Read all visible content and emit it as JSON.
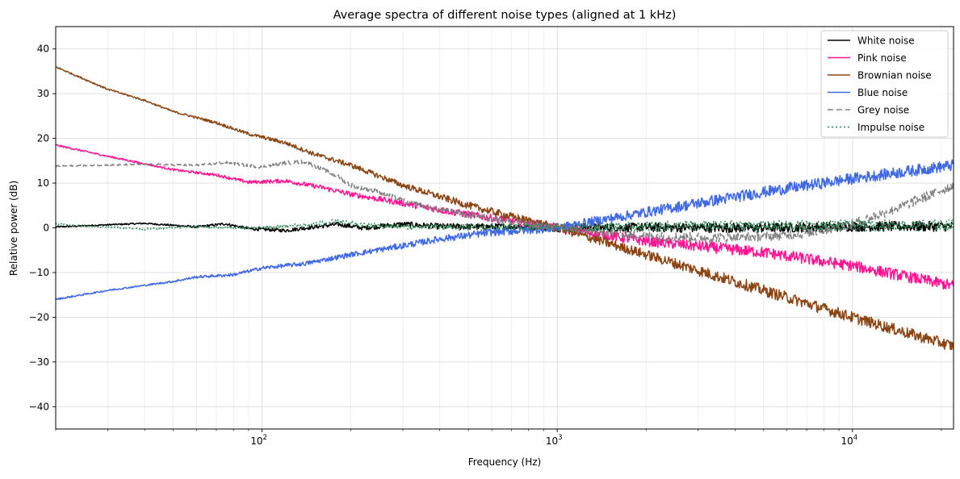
{
  "chart_data": {
    "type": "line",
    "title": "Average spectra of different noise types (aligned at 1 kHz)",
    "xlabel": "Frequency (Hz)",
    "ylabel": "Relative power (dB)",
    "xscale": "log",
    "xlim": [
      20,
      22000
    ],
    "ylim": [
      -45,
      45
    ],
    "grid": true,
    "legend_position": "top-right",
    "x_ticks": [
      {
        "value": 100,
        "base": "10",
        "exp": "2"
      },
      {
        "value": 1000,
        "base": "10",
        "exp": "3"
      },
      {
        "value": 10000,
        "base": "10",
        "exp": "4"
      }
    ],
    "y_ticks": [
      -40,
      -30,
      -20,
      -10,
      0,
      10,
      20,
      30,
      40
    ],
    "y_tick_labels": [
      "−40",
      "−30",
      "−20",
      "−10",
      "0",
      "10",
      "20",
      "30",
      "40"
    ],
    "series": [
      {
        "name": "White noise",
        "color": "#000000",
        "dash": "solid",
        "x": [
          20,
          40,
          60,
          75,
          90,
          120,
          160,
          180,
          220,
          300,
          400,
          600,
          800,
          1000,
          2000,
          5000,
          10000,
          22000
        ],
        "y": [
          0.2,
          1.0,
          0.2,
          0.9,
          -0.2,
          -0.6,
          0.4,
          0.8,
          0.0,
          0.8,
          0.3,
          0.2,
          0.3,
          0.0,
          0.1,
          0.0,
          0.3,
          0.3
        ],
        "noise": 0.8
      },
      {
        "name": "Pink noise",
        "color": "#ff1493",
        "dash": "solid",
        "x": [
          20,
          30,
          50,
          70,
          90,
          120,
          160,
          200,
          300,
          400,
          500,
          700,
          1000,
          2000,
          5000,
          10000,
          22000
        ],
        "y": [
          18.5,
          16,
          13,
          11.8,
          10.2,
          10.5,
          9,
          7.5,
          5.5,
          4,
          3,
          1.5,
          0,
          -3,
          -5.5,
          -8.5,
          -13
        ],
        "noise": 0.9
      },
      {
        "name": "Brownian noise",
        "color": "#8b4513",
        "dash": "solid",
        "x": [
          20,
          30,
          40,
          50,
          70,
          90,
          120,
          150,
          200,
          300,
          500,
          700,
          1000,
          2000,
          5000,
          10000,
          22000
        ],
        "y": [
          36,
          31,
          28.5,
          26,
          23.5,
          21,
          19,
          16.5,
          14,
          9.5,
          5,
          2.5,
          0,
          -6,
          -14,
          -20,
          -26.5
        ],
        "noise": 0.9
      },
      {
        "name": "Blue noise",
        "color": "#4169e1",
        "dash": "solid",
        "x": [
          20,
          30,
          50,
          60,
          80,
          100,
          140,
          200,
          300,
          400,
          600,
          800,
          1000,
          2000,
          3000,
          5000,
          10000,
          22000
        ],
        "y": [
          -16,
          -14,
          -12,
          -11,
          -10.5,
          -9,
          -8,
          -6,
          -4,
          -2.5,
          -1,
          -0.5,
          0,
          3.5,
          5.5,
          8,
          11,
          14
        ],
        "noise": 0.9
      },
      {
        "name": "Grey noise",
        "color": "#808080",
        "dash": "7,4",
        "x": [
          20,
          40,
          60,
          75,
          100,
          120,
          140,
          180,
          200,
          250,
          300,
          400,
          600,
          1000,
          2000,
          3000,
          5000,
          7000,
          10000,
          15000,
          22000
        ],
        "y": [
          13.8,
          14.2,
          14,
          14.6,
          13.6,
          14.5,
          14.8,
          11.5,
          9.5,
          8,
          6,
          4,
          2,
          0,
          -1.8,
          -2.2,
          -2,
          -1.2,
          0.8,
          5,
          9.5
        ],
        "noise": 0.8
      },
      {
        "name": "Impulse noise",
        "color": "#2e8b57",
        "dash": "2,3",
        "x": [
          20,
          40,
          60,
          80,
          100,
          140,
          180,
          220,
          400,
          1000,
          2000,
          5000,
          10000,
          22000
        ],
        "y": [
          0.8,
          -0.3,
          0.3,
          0.0,
          0.1,
          0.6,
          1.4,
          0.5,
          0.2,
          0.0,
          0.3,
          0.4,
          0.5,
          0.6
        ],
        "noise": 0.9
      }
    ]
  }
}
